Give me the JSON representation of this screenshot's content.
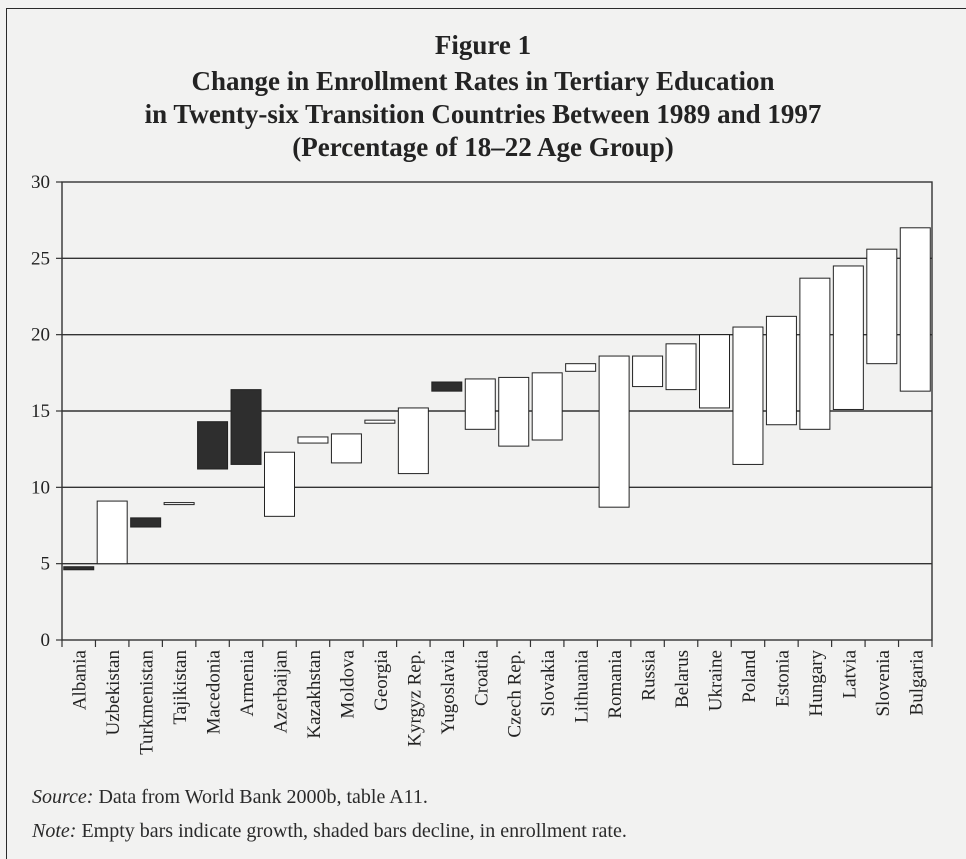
{
  "figure": {
    "number": "Figure 1",
    "title_lines": [
      "Change in Enrollment Rates in Tertiary Education",
      "in Twenty-six Transition Countries Between 1989 and 1997",
      "(Percentage of 18–22 Age Group)"
    ]
  },
  "source": {
    "lead": "Source:",
    "text": " Data from World Bank 2000b, table A11."
  },
  "note": {
    "lead": "Note:",
    "text": " Empty bars indicate growth, shaded bars decline, in enrollment rate."
  },
  "colors": {
    "decline": "#2e2e2e",
    "growth": "#ffffff",
    "axis": "#333333",
    "grid": "#333333"
  },
  "chart_data": {
    "type": "bar",
    "subtype": "floating-range",
    "title": "Change in Enrollment Rates in Tertiary Education in Twenty-six Transition Countries Between 1989 and 1997 (Percentage of 18–22 Age Group)",
    "xlabel": "",
    "ylabel": "",
    "ylim": [
      0,
      30
    ],
    "yticks": [
      0,
      5,
      10,
      15,
      20,
      25,
      30
    ],
    "grid": true,
    "legend": "none",
    "series": [
      {
        "name": "1989",
        "values": [
          4.8,
          5.0,
          8.0,
          8.9,
          14.3,
          16.4,
          8.1,
          12.9,
          11.6,
          14.2,
          10.9,
          16.9,
          13.8,
          12.7,
          13.1,
          17.6,
          8.7,
          16.6,
          16.4,
          15.2,
          11.5,
          14.1,
          13.8,
          15.1,
          18.1,
          16.3
        ]
      },
      {
        "name": "1997",
        "values": [
          4.6,
          9.1,
          7.4,
          9.0,
          11.2,
          11.5,
          12.3,
          13.3,
          13.5,
          14.4,
          15.2,
          16.3,
          17.1,
          17.2,
          17.5,
          18.1,
          18.6,
          18.6,
          19.4,
          20.0,
          20.5,
          21.2,
          23.7,
          24.5,
          25.6,
          27.0
        ]
      }
    ],
    "categories": [
      "Albania",
      "Uzbekistan",
      "Turkmenistan",
      "Tajikistan",
      "Macedonia",
      "Armenia",
      "Azerbaijan",
      "Kazakhstan",
      "Moldova",
      "Georgia",
      "Kyrgyz Rep.",
      "Yugoslavia",
      "Croatia",
      "Czech Rep.",
      "Slovakia",
      "Lithuania",
      "Romania",
      "Russia",
      "Belarus",
      "Ukraine",
      "Poland",
      "Estonia",
      "Hungary",
      "Latvia",
      "Slovenia",
      "Bulgaria"
    ]
  }
}
